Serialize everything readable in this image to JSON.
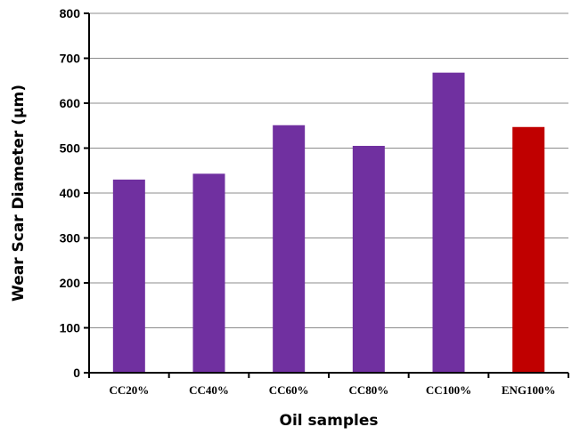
{
  "chart_data": {
    "type": "bar",
    "title": "",
    "xlabel": "Oil samples",
    "ylabel": "Wear Scar Diameter (µm)",
    "categories": [
      "CC20%",
      "CC40%",
      "CC60%",
      "CC80%",
      "CC100%",
      "ENG100%"
    ],
    "values": [
      430,
      443,
      551,
      505,
      668,
      547
    ],
    "bar_colors": [
      "#7030a0",
      "#7030a0",
      "#7030a0",
      "#7030a0",
      "#7030a0",
      "#c00000"
    ],
    "ylim": [
      0,
      800
    ],
    "yticks": [
      0,
      100,
      200,
      300,
      400,
      500,
      600,
      700,
      800
    ],
    "grid": true,
    "legend": "none"
  }
}
